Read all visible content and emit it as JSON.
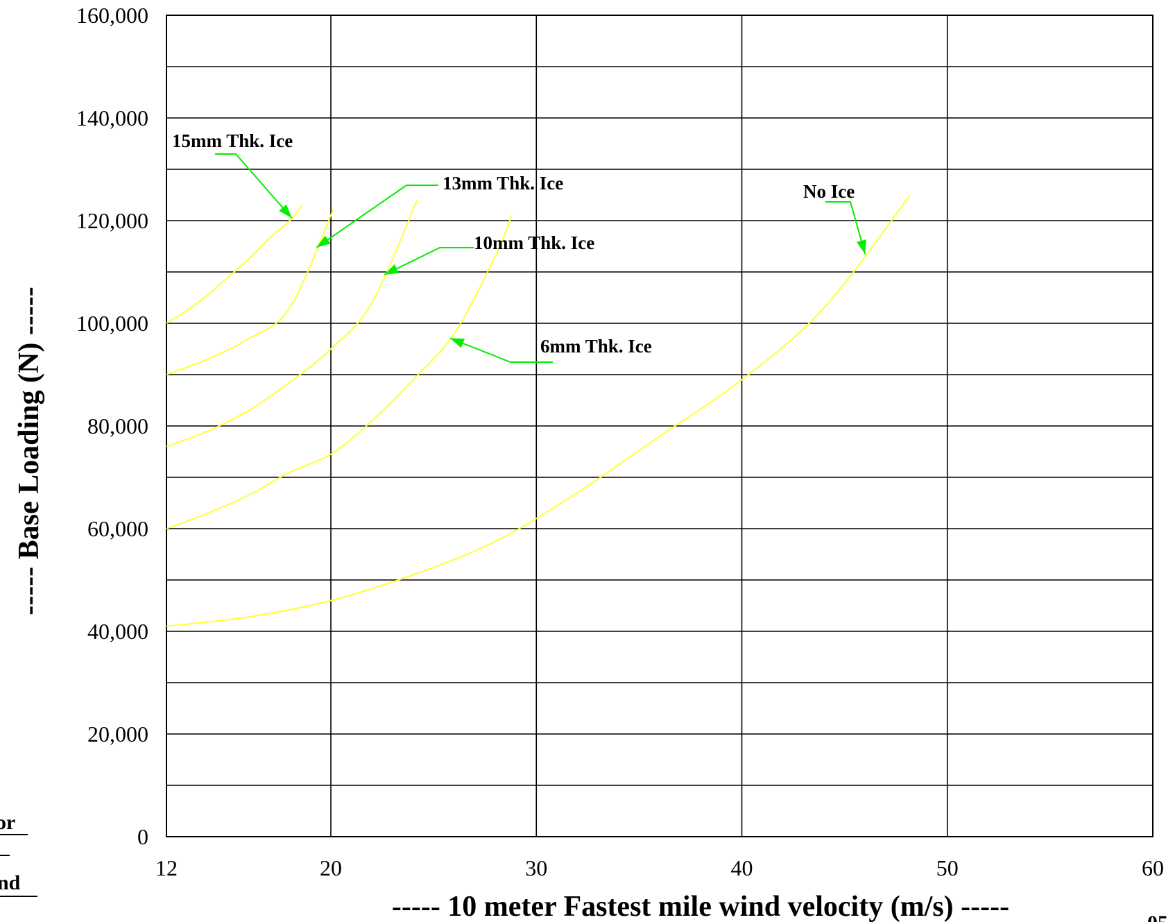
{
  "chart_data": {
    "type": "line",
    "title": "",
    "xlabel": "----- 10 meter Fastest mile wind velocity (m/s) -----",
    "ylabel": "----- Base Loading  (N) -----",
    "xlim": [
      12,
      60
    ],
    "ylim": [
      0,
      160000
    ],
    "x_ticks": [
      12,
      20,
      30,
      40,
      50,
      60
    ],
    "x_tick_labels": [
      "12",
      "20",
      "30",
      "40",
      "50",
      "60"
    ],
    "y_ticks": [
      0,
      20000,
      40000,
      60000,
      80000,
      100000,
      120000,
      140000,
      160000
    ],
    "y_tick_labels": [
      "0",
      "20,000",
      "40,000",
      "60,000",
      "80,000",
      "100,000",
      "120,000",
      "140,000",
      "160,000"
    ],
    "grid": true,
    "line_color": "#ffff33",
    "arrow_color": "#00ee00",
    "series": [
      {
        "name": "No Ice",
        "x": [
          12,
          16,
          20,
          24,
          28,
          32,
          36,
          40,
          44,
          48.2
        ],
        "y": [
          41000,
          42800,
          46000,
          51000,
          57500,
          67000,
          78000,
          89000,
          103000,
          125000
        ]
      },
      {
        "name": "6mm Thk. Ice",
        "x": [
          12,
          14,
          16,
          18,
          20,
          22,
          24,
          26,
          28,
          28.8
        ],
        "y": [
          60000,
          63000,
          66500,
          71000,
          74500,
          81000,
          89000,
          98000,
          113000,
          121000
        ]
      },
      {
        "name": "10mm Thk. Ice",
        "x": [
          12,
          14,
          16,
          18,
          20,
          22,
          24.2
        ],
        "y": [
          76000,
          79000,
          83000,
          88500,
          95000,
          104000,
          124000
        ]
      },
      {
        "name": "13mm Thk. Ice",
        "x": [
          12,
          14,
          16,
          18,
          20.1
        ],
        "y": [
          90000,
          93000,
          97000,
          103000,
          122000
        ]
      },
      {
        "name": "15mm Thk. Ice",
        "x": [
          12,
          13,
          14,
          15,
          16,
          17,
          18,
          18.6
        ],
        "y": [
          100000,
          102500,
          105500,
          109000,
          112500,
          116500,
          120000,
          123000
        ]
      }
    ],
    "annotations": [
      {
        "text": "15mm Thk. Ice",
        "series": 4,
        "at_x": 18.1
      },
      {
        "text": "13mm Thk. Ice",
        "series": 3,
        "at_x": 19.3
      },
      {
        "text": "10mm Thk. Ice",
        "series": 2,
        "at_x": 22.6
      },
      {
        "text": "6mm Thk. Ice",
        "series": 1,
        "at_x": 25.8
      },
      {
        "text": "No Ice",
        "series": 0,
        "at_x": 46.0
      }
    ]
  },
  "page": {
    "edge_left_1": "or",
    "edge_left_2": "nd",
    "edge_right": "05"
  }
}
